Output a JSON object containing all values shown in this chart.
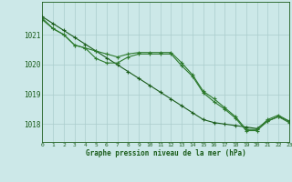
{
  "xlabel": "Graphe pression niveau de la mer (hPa)",
  "hours": [
    0,
    1,
    2,
    3,
    4,
    5,
    6,
    7,
    8,
    9,
    10,
    11,
    12,
    13,
    14,
    15,
    16,
    17,
    18,
    19,
    20,
    21,
    22,
    23
  ],
  "line_straight": [
    1021.6,
    1021.37,
    1021.14,
    1020.91,
    1020.68,
    1020.45,
    1020.22,
    1019.99,
    1019.76,
    1019.53,
    1019.3,
    1019.07,
    1018.84,
    1018.61,
    1018.38,
    1018.15,
    1018.05,
    1018.0,
    1017.95,
    1017.9,
    1017.85,
    1018.1,
    1018.25,
    1018.1
  ],
  "line_wavy1": [
    1021.5,
    1021.2,
    1021.0,
    1020.65,
    1020.55,
    1020.45,
    1020.35,
    1020.25,
    1020.35,
    1020.4,
    1020.4,
    1020.4,
    1020.4,
    1020.05,
    1019.65,
    1019.1,
    1018.85,
    1018.55,
    1018.25,
    1017.82,
    1017.82,
    1018.15,
    1018.3,
    1018.1
  ],
  "line_wavy2": [
    1021.55,
    1021.2,
    1021.0,
    1020.65,
    1020.55,
    1020.2,
    1020.05,
    1020.05,
    1020.25,
    1020.35,
    1020.35,
    1020.35,
    1020.35,
    1019.95,
    1019.6,
    1019.05,
    1018.75,
    1018.5,
    1018.2,
    1017.78,
    1017.78,
    1018.1,
    1018.25,
    1018.05
  ],
  "line_color1": "#1a5c1a",
  "line_color2": "#2d7a2d",
  "line_color3": "#2d7a2d",
  "bg_color": "#cce8e8",
  "grid_color": "#aacccc",
  "text_color": "#1a5c1a",
  "ylim_min": 1017.4,
  "ylim_max": 1022.1,
  "yticks": [
    1018,
    1019,
    1020,
    1021
  ],
  "xticks": [
    0,
    1,
    2,
    3,
    4,
    5,
    6,
    7,
    8,
    9,
    10,
    11,
    12,
    13,
    14,
    15,
    16,
    17,
    18,
    19,
    20,
    21,
    22,
    23
  ]
}
